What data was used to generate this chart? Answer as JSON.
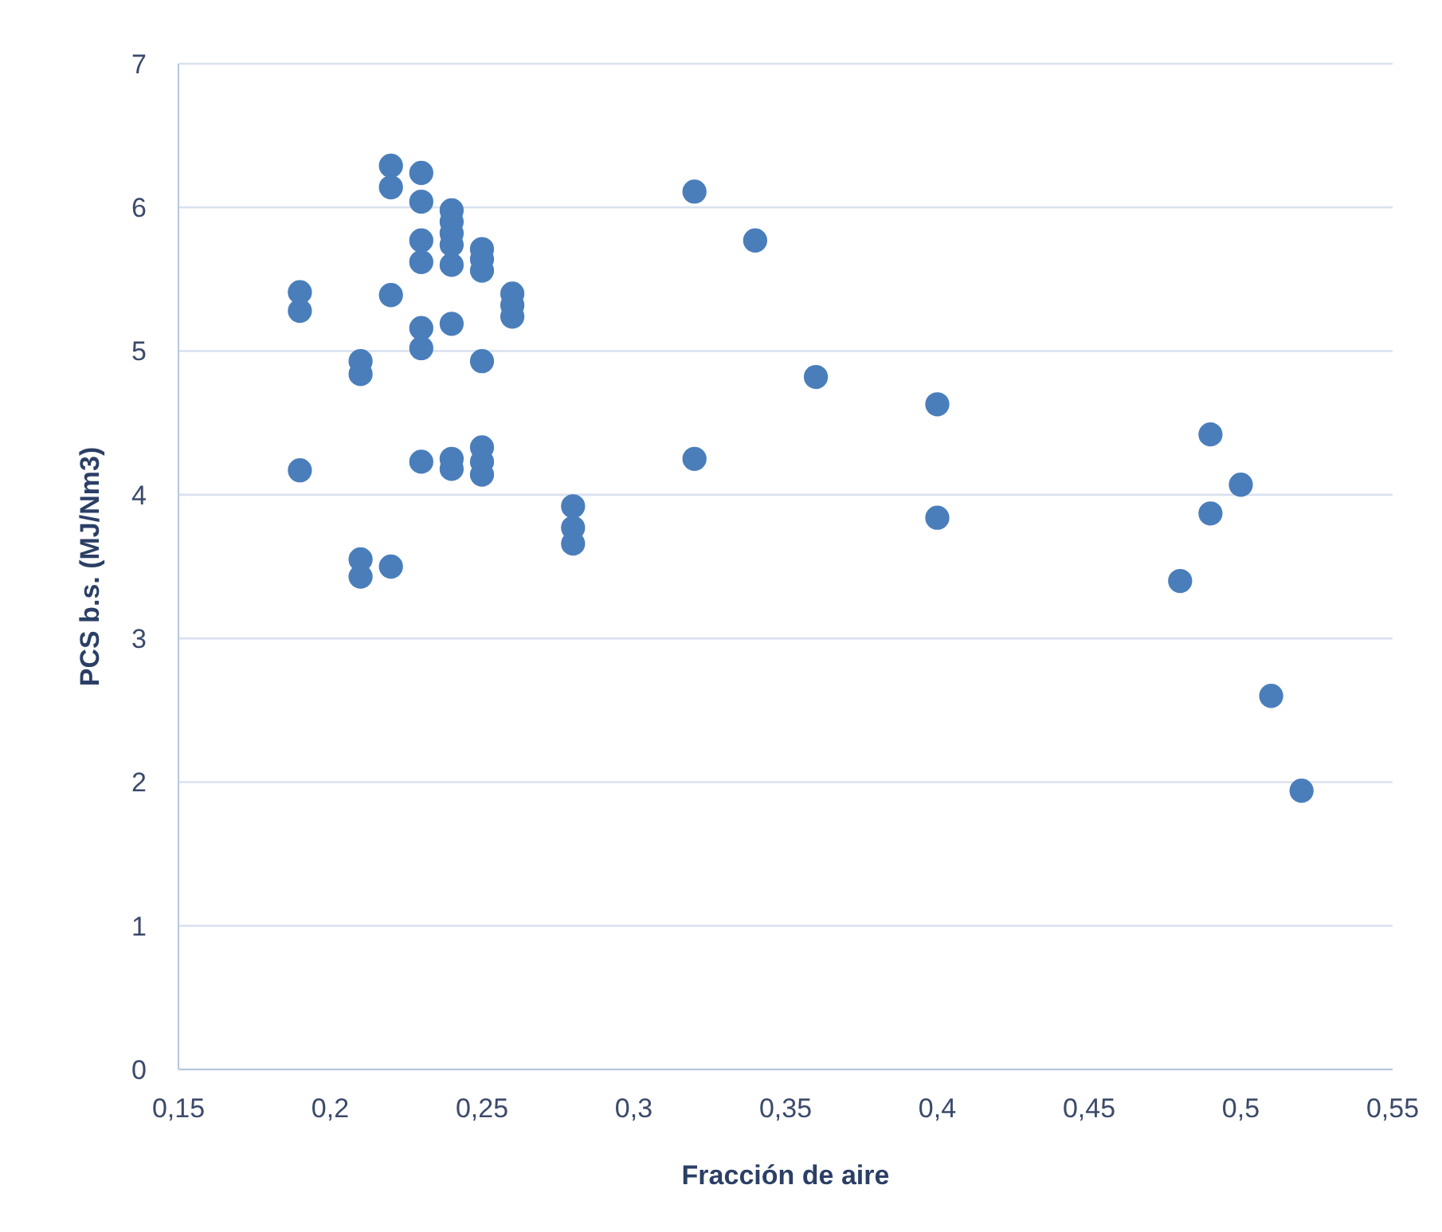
{
  "chart_data": {
    "type": "scatter",
    "xlabel": "Fracción de aire",
    "ylabel": "PCS b.s. (MJ/Nm3)",
    "x": [
      0.19,
      0.19,
      0.19,
      0.21,
      0.21,
      0.21,
      0.21,
      0.22,
      0.22,
      0.22,
      0.22,
      0.23,
      0.23,
      0.23,
      0.23,
      0.23,
      0.23,
      0.23,
      0.24,
      0.24,
      0.24,
      0.24,
      0.24,
      0.24,
      0.24,
      0.24,
      0.25,
      0.25,
      0.25,
      0.25,
      0.25,
      0.25,
      0.25,
      0.26,
      0.26,
      0.26,
      0.28,
      0.28,
      0.28,
      0.32,
      0.32,
      0.34,
      0.36,
      0.4,
      0.4,
      0.48,
      0.49,
      0.49,
      0.5,
      0.51,
      0.52
    ],
    "values": [
      5.41,
      5.28,
      4.17,
      4.93,
      4.84,
      3.55,
      3.43,
      6.29,
      6.14,
      5.39,
      3.5,
      6.24,
      6.04,
      5.77,
      5.62,
      5.16,
      5.02,
      4.23,
      5.98,
      5.9,
      5.82,
      5.74,
      5.6,
      5.19,
      4.25,
      4.18,
      5.71,
      5.64,
      5.56,
      4.93,
      4.33,
      4.23,
      4.14,
      5.4,
      5.32,
      5.24,
      3.92,
      3.77,
      3.66,
      6.11,
      4.25,
      5.77,
      4.82,
      4.63,
      3.84,
      3.4,
      4.42,
      3.87,
      4.07,
      2.6,
      1.94
    ],
    "color": "#4a7ebb",
    "marker": "circle",
    "grid": "y",
    "xlim": [
      0.15,
      0.55
    ],
    "xticks": [
      {
        "value": 0.15,
        "label": "0,15"
      },
      {
        "value": 0.2,
        "label": "0,2"
      },
      {
        "value": 0.25,
        "label": "0,25"
      },
      {
        "value": 0.3,
        "label": "0,3"
      },
      {
        "value": 0.35,
        "label": "0,35"
      },
      {
        "value": 0.4,
        "label": "0,4"
      },
      {
        "value": 0.45,
        "label": "0,45"
      },
      {
        "value": 0.5,
        "label": "0,5"
      },
      {
        "value": 0.55,
        "label": "0,55"
      }
    ],
    "ylim": [
      0,
      7
    ],
    "yticks": [
      0,
      1,
      2,
      3,
      4,
      5,
      6,
      7
    ]
  }
}
